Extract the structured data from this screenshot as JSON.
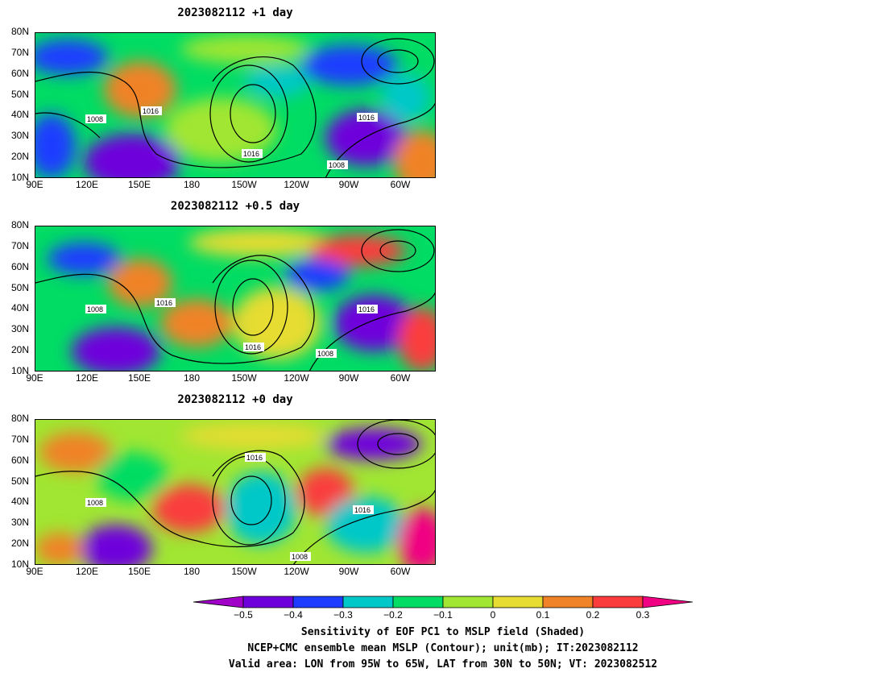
{
  "chart_data": [
    {
      "type": "heatmap",
      "title": "2023082112 +1 day",
      "y_ticks": [
        "80N",
        "70N",
        "60N",
        "50N",
        "40N",
        "30N",
        "20N",
        "10N"
      ],
      "x_ticks": [
        "90E",
        "120E",
        "150E",
        "180",
        "150W",
        "120W",
        "90W",
        "60W"
      ],
      "contour_labels": [
        "1008",
        "1016",
        "1016",
        "1016",
        "1008"
      ]
    },
    {
      "type": "heatmap",
      "title": "2023082112 +0.5 day",
      "y_ticks": [
        "80N",
        "70N",
        "60N",
        "50N",
        "40N",
        "30N",
        "20N",
        "10N"
      ],
      "x_ticks": [
        "90E",
        "120E",
        "150E",
        "180",
        "150W",
        "120W",
        "90W",
        "60W"
      ],
      "contour_labels": [
        "1008",
        "1016",
        "1016",
        "1016",
        "1008"
      ]
    },
    {
      "type": "heatmap",
      "title": "2023082112 +0 day",
      "y_ticks": [
        "80N",
        "70N",
        "60N",
        "50N",
        "40N",
        "30N",
        "20N",
        "10N"
      ],
      "x_ticks": [
        "90E",
        "120E",
        "150E",
        "180",
        "150W",
        "120W",
        "90W",
        "60W"
      ],
      "contour_labels": [
        "1008",
        "1016",
        "1016",
        "1008"
      ]
    }
  ],
  "colorbar": {
    "levels": [
      "−0.5",
      "−0.4",
      "−0.3",
      "−0.2",
      "−0.1",
      "0",
      "0.1",
      "0.2",
      "0.3"
    ],
    "colors": [
      "#a000c8",
      "#6e00dc",
      "#1e3cff",
      "#00c8c8",
      "#00dc64",
      "#a0e632",
      "#e6dc32",
      "#f08228",
      "#fa3c3c",
      "#f00082"
    ]
  },
  "caption": {
    "line1": "Sensitivity of EOF PC1 to MSLP field (Shaded)",
    "line2": "NCEP+CMC ensemble mean MSLP (Contour); unit(mb); IT:2023082112",
    "line3": "Valid area: LON from 95W to 65W, LAT from 30N to 50N; VT: 2023082512"
  }
}
